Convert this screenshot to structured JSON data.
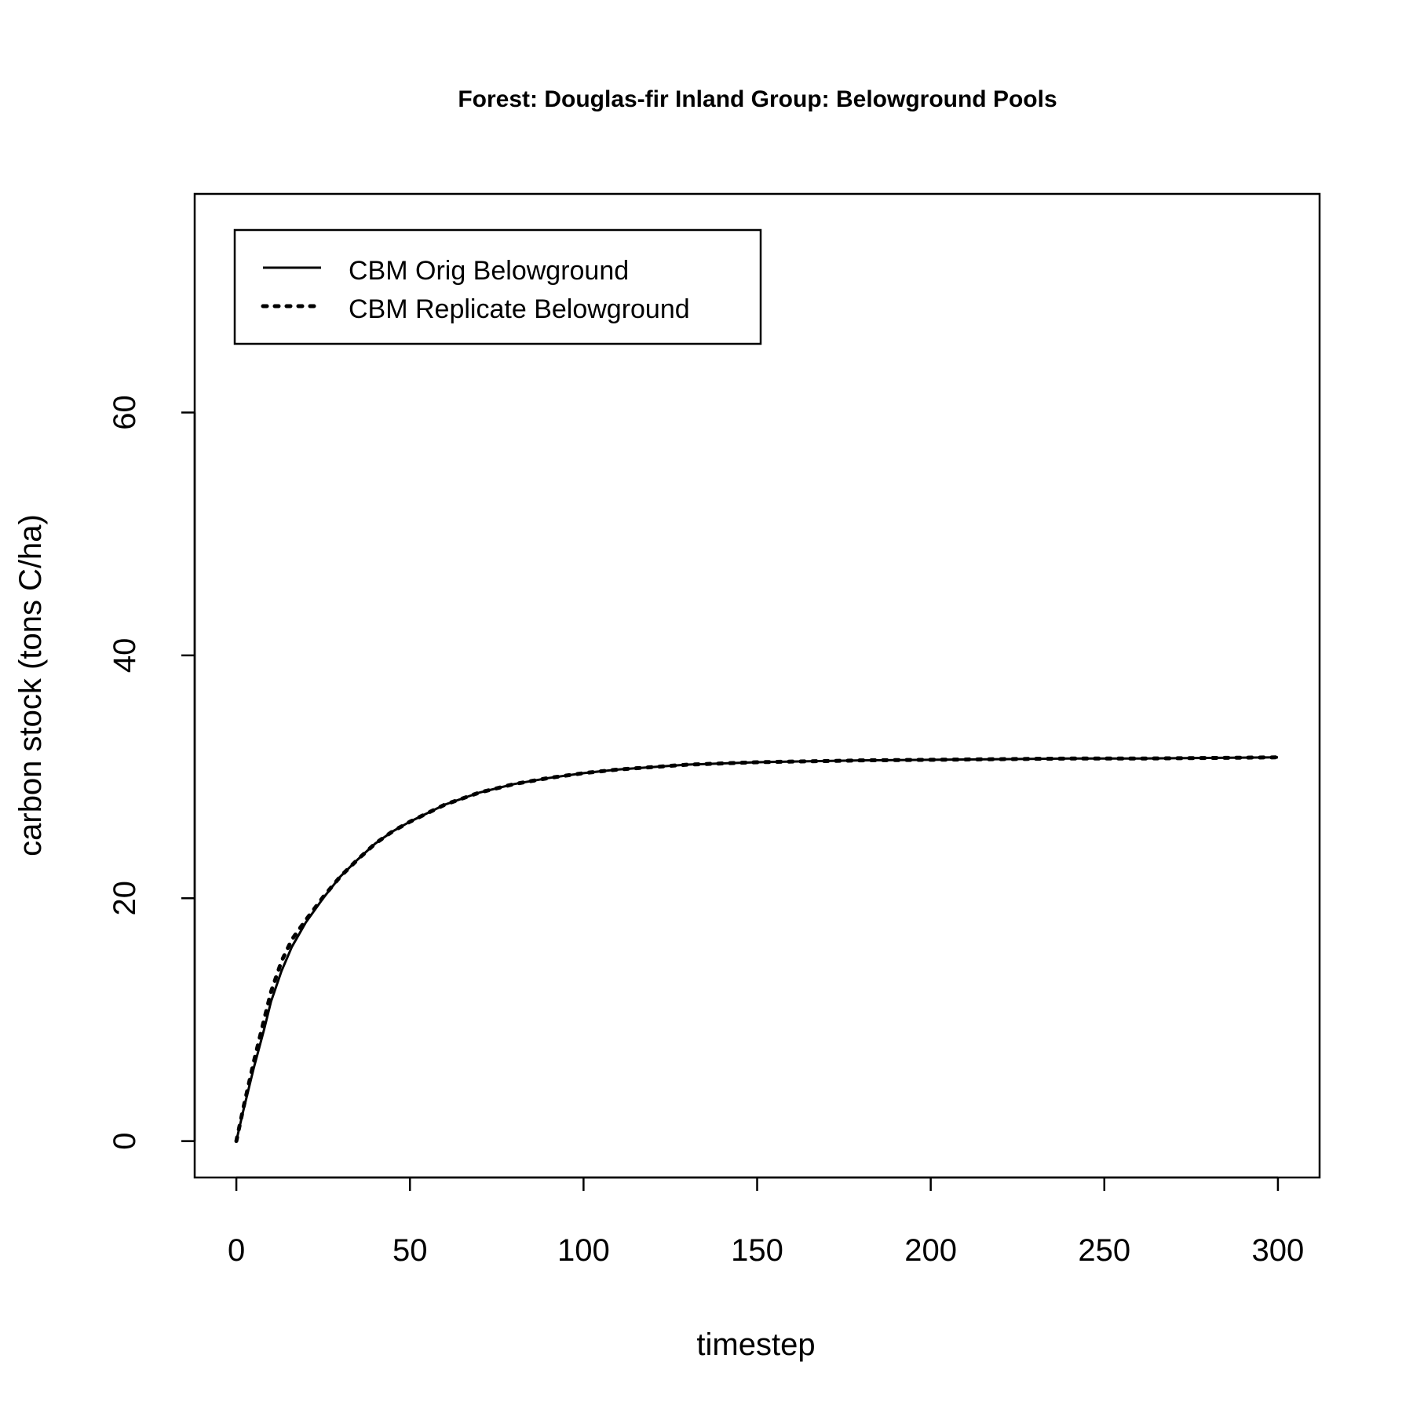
{
  "chart_data": {
    "type": "line",
    "title": "Forest: Douglas-fir Inland Group: Belowground Pools",
    "xlabel": "timestep",
    "ylabel": "carbon stock (tons C/ha)",
    "xlim": [
      -12,
      312
    ],
    "ylim": [
      -3,
      78
    ],
    "xticks": [
      0,
      50,
      100,
      150,
      200,
      250,
      300
    ],
    "yticks": [
      0,
      20,
      40,
      60
    ],
    "xtick_labels": [
      "0",
      "50",
      "100",
      "150",
      "200",
      "250",
      "300"
    ],
    "ytick_labels": [
      "0",
      "20",
      "40",
      "60"
    ],
    "grid": false,
    "legend_position": "top-left",
    "series": [
      {
        "name": "CBM Orig Belowground",
        "style": "solid",
        "x": [
          0,
          2,
          5,
          8,
          10,
          13,
          16,
          20,
          25,
          30,
          35,
          40,
          45,
          50,
          60,
          70,
          80,
          90,
          100,
          110,
          120,
          130,
          140,
          150,
          160,
          180,
          200,
          220,
          240,
          260,
          280,
          300
        ],
        "y": [
          0,
          2.5,
          6.0,
          9.2,
          11.5,
          14.0,
          16.0,
          18.0,
          20.0,
          21.8,
          23.2,
          24.5,
          25.5,
          26.3,
          27.7,
          28.7,
          29.4,
          29.9,
          30.3,
          30.6,
          30.8,
          31.0,
          31.1,
          31.2,
          31.25,
          31.35,
          31.4,
          31.45,
          31.5,
          31.5,
          31.55,
          31.6
        ]
      },
      {
        "name": "CBM Replicate Belowground",
        "style": "dotted",
        "x": [
          0,
          2,
          5,
          8,
          10,
          13,
          16,
          20,
          25,
          30,
          35,
          40,
          45,
          50,
          60,
          70,
          80,
          90,
          100,
          110,
          120,
          130,
          140,
          150,
          160,
          180,
          200,
          220,
          240,
          260,
          280,
          300
        ],
        "y": [
          0,
          2.7,
          6.5,
          10.0,
          12.3,
          14.8,
          16.6,
          18.2,
          20.1,
          21.8,
          23.2,
          24.5,
          25.5,
          26.3,
          27.7,
          28.7,
          29.4,
          29.9,
          30.3,
          30.6,
          30.8,
          31.0,
          31.1,
          31.2,
          31.25,
          31.35,
          31.4,
          31.45,
          31.5,
          31.5,
          31.55,
          31.6
        ]
      }
    ]
  }
}
